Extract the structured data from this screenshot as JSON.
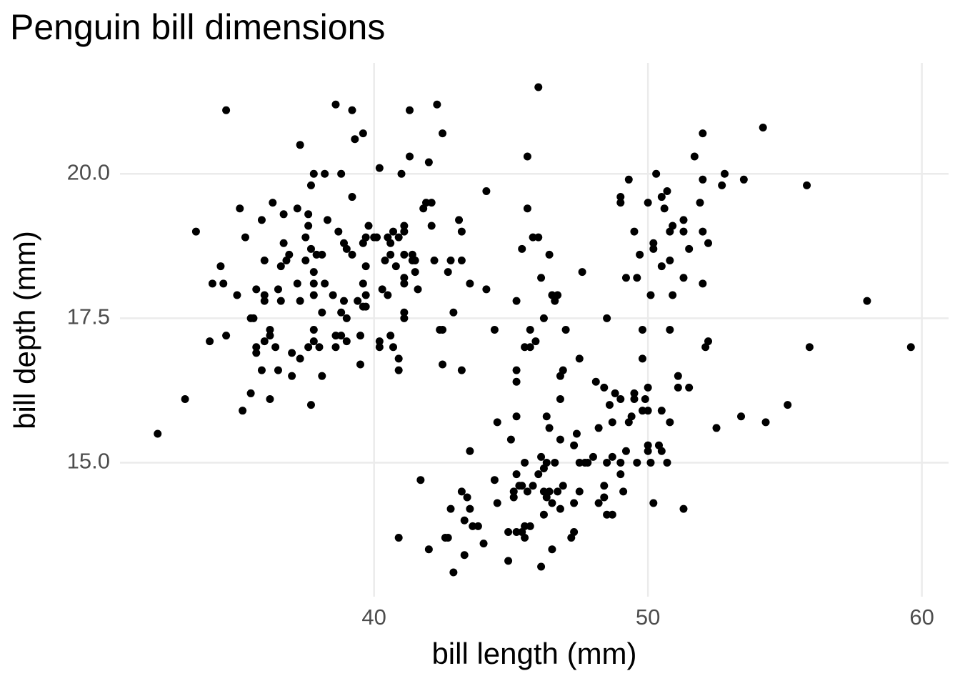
{
  "chart_data": {
    "type": "scatter",
    "title": "Penguin bill dimensions",
    "x_label": "bill length (mm)",
    "y_label": "bill depth (mm)",
    "color": "#000000",
    "grid": true,
    "xlim": [
      30.725,
      60.975
    ],
    "ylim": [
      12.68,
      21.92
    ],
    "xticks": [
      40,
      50,
      60
    ],
    "yticks": [
      {
        "value": 15,
        "label": "15.0"
      },
      17.5,
      {
        "value": 20,
        "label": "20.0"
      }
    ],
    "x": [
      32.1,
      33.1,
      33.5,
      34.0,
      34.1,
      34.4,
      34.5,
      34.6,
      34.6,
      35.0,
      35.1,
      35.2,
      35.3,
      35.5,
      35.5,
      35.6,
      35.7,
      35.7,
      35.7,
      35.9,
      35.9,
      36.0,
      36.0,
      36.0,
      36.0,
      36.2,
      36.2,
      36.2,
      36.3,
      36.4,
      36.5,
      36.5,
      36.6,
      36.6,
      36.7,
      36.7,
      36.8,
      36.9,
      37.0,
      37.0,
      37.2,
      37.2,
      37.3,
      37.3,
      37.3,
      37.5,
      37.5,
      37.6,
      37.6,
      37.6,
      37.7,
      37.7,
      37.7,
      37.8,
      37.8,
      37.8,
      37.8,
      37.8,
      37.8,
      37.9,
      38.0,
      38.1,
      38.1,
      38.1,
      38.2,
      38.2,
      38.3,
      38.5,
      38.6,
      38.6,
      38.6,
      38.7,
      38.8,
      38.8,
      38.8,
      38.9,
      38.9,
      39.0,
      39.0,
      39.0,
      39.2,
      39.2,
      39.2,
      39.3,
      39.4,
      39.5,
      39.5,
      39.6,
      39.6,
      39.6,
      39.6,
      39.7,
      39.7,
      39.7,
      39.7,
      39.8,
      40.0,
      40.1,
      40.2,
      40.2,
      40.2,
      40.3,
      40.4,
      40.5,
      40.5,
      40.6,
      40.6,
      40.6,
      40.7,
      40.7,
      40.8,
      40.9,
      40.9,
      40.9,
      41.0,
      41.1,
      41.1,
      41.1,
      41.1,
      41.1,
      41.1,
      41.1,
      41.3,
      41.3,
      41.4,
      41.4,
      41.5,
      41.5,
      41.6,
      41.8,
      41.9,
      42.0,
      42.1,
      42.1,
      42.2,
      42.3,
      42.4,
      42.5,
      42.5,
      42.5,
      42.7,
      42.8,
      42.9,
      43.1,
      43.2,
      43.2,
      43.2,
      43.5,
      44.1,
      44.1,
      44.4,
      45.2,
      40.9,
      41.7,
      42.0,
      42.6,
      42.7,
      42.8,
      42.9,
      43.2,
      43.3,
      43.3,
      43.4,
      43.5,
      43.5,
      43.6,
      43.8,
      44.0,
      44.4,
      44.5,
      44.5,
      44.9,
      44.9,
      45.0,
      45.1,
      45.1,
      45.2,
      45.2,
      45.2,
      45.2,
      45.2,
      45.3,
      45.4,
      45.4,
      45.4,
      45.5,
      45.5,
      45.5,
      45.5,
      45.6,
      45.6,
      45.6,
      45.7,
      45.7,
      45.7,
      45.8,
      45.8,
      45.9,
      46.0,
      46.0,
      46.0,
      46.1,
      46.1,
      46.1,
      46.2,
      46.2,
      46.2,
      46.2,
      46.3,
      46.3,
      46.3,
      46.4,
      46.4,
      46.4,
      46.5,
      46.5,
      46.5,
      46.6,
      46.6,
      46.7,
      46.7,
      46.8,
      46.8,
      46.8,
      46.8,
      46.9,
      46.9,
      47.0,
      47.2,
      47.3,
      47.3,
      47.3,
      47.4,
      47.5,
      47.5,
      47.5,
      47.6,
      47.7,
      47.8,
      48.0,
      48.1,
      48.2,
      48.2,
      48.4,
      48.4,
      48.4,
      48.5,
      48.5,
      48.5,
      48.6,
      48.7,
      48.7,
      48.7,
      48.8,
      49.0,
      49.0,
      49.0,
      49.0,
      49.0,
      49.1,
      49.2,
      49.2,
      49.3,
      49.3,
      49.4,
      49.5,
      49.5,
      49.5,
      49.6,
      49.6,
      49.7,
      49.8,
      49.8,
      49.8,
      49.9,
      50.0,
      50.0,
      50.0,
      50.0,
      50.0,
      50.1,
      50.1,
      50.2,
      50.2,
      50.2,
      50.3,
      50.4,
      50.5,
      50.5,
      50.5,
      50.5,
      50.6,
      50.7,
      50.7,
      50.8,
      50.8,
      50.8,
      50.8,
      50.9,
      50.9,
      51.1,
      51.1,
      51.3,
      51.3,
      51.3,
      51.3,
      51.5,
      51.5,
      51.7,
      51.9,
      52.0,
      52.0,
      52.0,
      52.0,
      52.1,
      52.2,
      52.2,
      52.5,
      52.7,
      52.8,
      53.4,
      53.5,
      54.2,
      54.3,
      55.1,
      55.8,
      55.9,
      58.0,
      59.6
    ],
    "values": [
      15.5,
      16.1,
      19.0,
      17.1,
      18.1,
      18.4,
      18.1,
      17.2,
      21.1,
      17.9,
      19.4,
      15.9,
      18.9,
      16.2,
      17.5,
      17.5,
      18.0,
      17.0,
      16.9,
      16.6,
      19.2,
      17.9,
      17.8,
      17.1,
      18.5,
      17.3,
      16.1,
      17.2,
      19.5,
      17.0,
      16.6,
      18.0,
      18.4,
      17.8,
      19.3,
      18.8,
      18.5,
      18.6,
      16.9,
      16.5,
      18.1,
      19.4,
      20.5,
      17.8,
      16.8,
      18.5,
      18.9,
      19.1,
      19.3,
      17.0,
      16.0,
      19.8,
      18.7,
      20.0,
      18.3,
      18.1,
      17.3,
      17.1,
      17.9,
      18.6,
      17.0,
      18.6,
      17.6,
      16.5,
      20.0,
      18.1,
      19.2,
      17.9,
      21.2,
      17.2,
      17.0,
      19.0,
      20.0,
      17.6,
      17.2,
      17.8,
      18.8,
      17.5,
      17.1,
      18.7,
      21.1,
      18.6,
      19.6,
      20.6,
      17.8,
      16.7,
      17.2,
      20.7,
      18.1,
      18.8,
      17.7,
      17.7,
      17.9,
      18.4,
      18.9,
      19.1,
      18.9,
      18.9,
      20.1,
      17.1,
      17.0,
      18.0,
      18.5,
      18.9,
      17.9,
      17.2,
      18.8,
      18.6,
      19.0,
      17.0,
      18.4,
      16.8,
      16.6,
      18.9,
      20.0,
      19.1,
      18.1,
      17.6,
      17.5,
      18.2,
      18.6,
      19.0,
      21.1,
      20.3,
      18.5,
      18.6,
      18.3,
      18.5,
      18.0,
      19.4,
      19.5,
      20.2,
      19.1,
      19.5,
      18.5,
      21.2,
      17.3,
      17.3,
      20.7,
      16.7,
      18.3,
      18.5,
      17.6,
      19.2,
      19.0,
      18.5,
      16.6,
      18.1,
      18.0,
      19.7,
      17.3,
      17.8,
      13.7,
      14.7,
      13.5,
      13.7,
      13.7,
      14.2,
      13.1,
      14.5,
      13.4,
      14.0,
      14.4,
      14.2,
      15.2,
      13.9,
      13.9,
      13.6,
      14.7,
      15.7,
      14.3,
      13.3,
      13.8,
      15.4,
      14.5,
      14.4,
      14.8,
      13.8,
      16.6,
      16.4,
      15.8,
      14.6,
      14.6,
      13.8,
      18.7,
      13.7,
      13.9,
      15.0,
      17.0,
      19.4,
      20.3,
      14.5,
      17.3,
      17.0,
      13.9,
      14.6,
      18.9,
      17.1,
      21.5,
      18.9,
      14.8,
      15.1,
      13.2,
      18.2,
      14.5,
      14.1,
      17.5,
      14.9,
      15.8,
      14.4,
      15.0,
      18.6,
      15.6,
      14.5,
      13.5,
      17.9,
      14.3,
      15.0,
      17.8,
      14.5,
      17.9,
      14.2,
      15.4,
      16.5,
      16.1,
      16.6,
      14.6,
      17.3,
      13.7,
      13.8,
      15.3,
      14.3,
      15.5,
      15.0,
      14.5,
      16.8,
      18.3,
      15.0,
      15.0,
      15.1,
      16.4,
      14.3,
      15.6,
      14.6,
      14.4,
      16.3,
      14.1,
      15.0,
      17.5,
      16.0,
      14.1,
      15.7,
      15.1,
      16.2,
      16.1,
      15.0,
      14.8,
      19.5,
      19.6,
      14.5,
      15.2,
      18.2,
      19.9,
      15.7,
      15.8,
      16.2,
      16.1,
      19.0,
      15.0,
      18.2,
      18.6,
      15.9,
      16.8,
      17.3,
      16.1,
      16.3,
      15.9,
      15.3,
      15.2,
      19.5,
      17.9,
      15.0,
      18.7,
      18.8,
      14.3,
      20.0,
      15.3,
      15.2,
      15.9,
      18.4,
      19.6,
      19.4,
      19.7,
      15.0,
      15.7,
      17.3,
      18.5,
      19.0,
      19.1,
      17.9,
      16.5,
      16.3,
      14.2,
      19.2,
      18.2,
      19.0,
      16.3,
      18.7,
      20.3,
      19.5,
      19.9,
      20.7,
      18.1,
      19.0,
      17.0,
      18.8,
      17.1,
      15.6,
      19.8,
      20.0,
      15.8,
      19.9,
      20.8,
      15.7,
      16.0,
      19.8,
      17.0,
      17.8,
      17.0
    ]
  }
}
